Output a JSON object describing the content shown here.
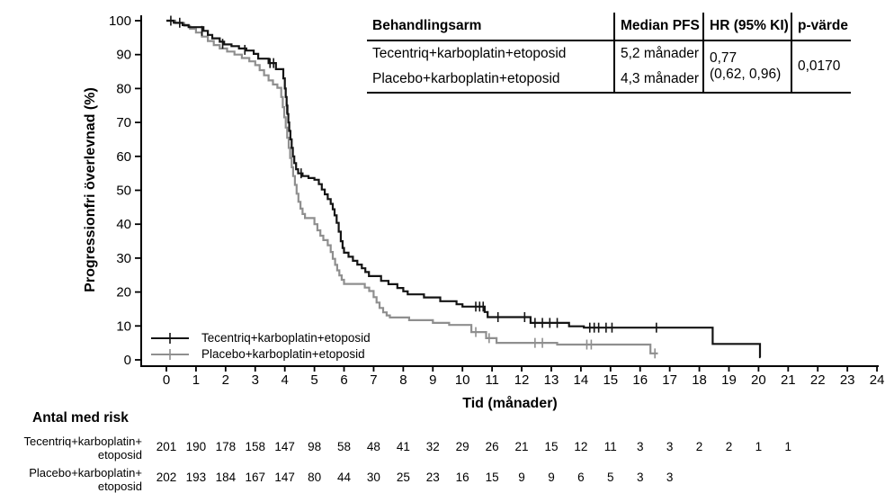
{
  "stats_table": {
    "headers": [
      "Behandlingsarm",
      "Median PFS",
      "HR (95% KI)",
      "p-värde"
    ],
    "rows": [
      {
        "arm": "Tecentriq+karboplatin+etoposid",
        "median": "5,2 månader"
      },
      {
        "arm": "Placebo+karboplatin+etoposid",
        "median": "4,3 månader"
      }
    ],
    "hr_value": "0,77",
    "hr_ci": "(0,62, 0,96)",
    "p_value": "0,0170"
  },
  "risk_table": {
    "title": "Antal med risk",
    "rows": [
      {
        "label": "Tecentriq+karboplatin+\netoposid",
        "values": [
          201,
          190,
          178,
          158,
          147,
          98,
          58,
          48,
          41,
          32,
          29,
          26,
          21,
          15,
          12,
          11,
          3,
          3,
          2,
          2,
          1,
          1
        ]
      },
      {
        "label": "Placebo+karboplatin+\netoposid",
        "values": [
          202,
          193,
          184,
          167,
          147,
          80,
          44,
          30,
          25,
          23,
          16,
          15,
          9,
          9,
          6,
          5,
          3,
          3
        ]
      }
    ]
  },
  "chart_data": {
    "type": "line",
    "subtype": "kaplan-meier-step",
    "title": "",
    "xlabel": "Tid (månader)",
    "ylabel": "Progressionfri överlevnad (%)",
    "xlim": [
      0,
      24
    ],
    "ylim": [
      0,
      100
    ],
    "xticks": [
      0,
      1,
      2,
      3,
      4,
      5,
      6,
      7,
      8,
      9,
      10,
      11,
      12,
      13,
      14,
      15,
      16,
      17,
      18,
      19,
      20,
      21,
      22,
      23,
      24
    ],
    "yticks": [
      0,
      10,
      20,
      30,
      40,
      50,
      60,
      70,
      80,
      90,
      100
    ],
    "grid": false,
    "legend_position": "lower-left-inside",
    "series": [
      {
        "name": "Tecentriq+karboplatin+etoposid",
        "color": "#141414",
        "median_pfs_months": 5.2,
        "end": 20.07,
        "steps": [
          [
            0,
            100
          ],
          [
            0.25,
            99.4
          ],
          [
            0.55,
            98.7
          ],
          [
            0.75,
            98.1
          ],
          [
            1.25,
            97
          ],
          [
            1.4,
            95.8
          ],
          [
            1.55,
            94.8
          ],
          [
            1.8,
            93.8
          ],
          [
            1.95,
            93
          ],
          [
            2.2,
            92.5
          ],
          [
            2.45,
            91.8
          ],
          [
            2.7,
            91.2
          ],
          [
            2.95,
            90.2
          ],
          [
            3.1,
            88.8
          ],
          [
            3.45,
            87.5
          ],
          [
            3.7,
            85.7
          ],
          [
            3.95,
            83
          ],
          [
            4.0,
            80
          ],
          [
            4.03,
            77.5
          ],
          [
            4.06,
            75
          ],
          [
            4.09,
            72.5
          ],
          [
            4.12,
            70
          ],
          [
            4.15,
            67.5
          ],
          [
            4.19,
            65
          ],
          [
            4.23,
            62.5
          ],
          [
            4.27,
            60
          ],
          [
            4.32,
            58
          ],
          [
            4.38,
            56.2
          ],
          [
            4.45,
            55
          ],
          [
            4.6,
            54.2
          ],
          [
            4.8,
            53.6
          ],
          [
            5.0,
            53.1
          ],
          [
            5.15,
            51.8
          ],
          [
            5.25,
            50.2
          ],
          [
            5.35,
            48.8
          ],
          [
            5.45,
            47.4
          ],
          [
            5.55,
            46
          ],
          [
            5.62,
            44.4
          ],
          [
            5.68,
            42.6
          ],
          [
            5.75,
            40.4
          ],
          [
            5.82,
            37.8
          ],
          [
            5.89,
            35
          ],
          [
            5.95,
            33
          ],
          [
            6.0,
            31.6
          ],
          [
            6.15,
            30.4
          ],
          [
            6.3,
            29.2
          ],
          [
            6.45,
            28.1
          ],
          [
            6.6,
            27
          ],
          [
            6.72,
            25.9
          ],
          [
            6.84,
            24.7
          ],
          [
            7.25,
            23.3
          ],
          [
            7.5,
            22.3
          ],
          [
            7.8,
            21.2
          ],
          [
            8.0,
            20.2
          ],
          [
            8.15,
            19.3
          ],
          [
            8.7,
            18.4
          ],
          [
            9.25,
            17.3
          ],
          [
            9.8,
            16.4
          ],
          [
            10.0,
            15.7
          ],
          [
            10.75,
            14.1
          ],
          [
            10.85,
            12.6
          ],
          [
            12.3,
            10.9
          ],
          [
            13.6,
            9.9
          ],
          [
            14.1,
            9.5
          ],
          [
            18.45,
            4.7
          ],
          [
            20.05,
            0.8
          ]
        ],
        "censors": [
          [
            0.15,
            100
          ],
          [
            0.45,
            99.4
          ],
          [
            1.2,
            97
          ],
          [
            1.9,
            93.2
          ],
          [
            2.65,
            91.4
          ],
          [
            3.5,
            87.5
          ],
          [
            3.62,
            87.5
          ],
          [
            4.07,
            74
          ],
          [
            4.55,
            55
          ],
          [
            10.45,
            15.7
          ],
          [
            10.58,
            15.7
          ],
          [
            10.7,
            15.7
          ],
          [
            11.2,
            12.6
          ],
          [
            12.1,
            12.6
          ],
          [
            12.45,
            10.9
          ],
          [
            12.7,
            10.9
          ],
          [
            12.95,
            10.9
          ],
          [
            13.2,
            10.9
          ],
          [
            14.3,
            9.5
          ],
          [
            14.45,
            9.5
          ],
          [
            14.6,
            9.5
          ],
          [
            14.85,
            9.5
          ],
          [
            15.05,
            9.5
          ],
          [
            16.55,
            9.5
          ]
        ]
      },
      {
        "name": "Placebo+karboplatin+etoposid",
        "color": "#8f8f8f",
        "median_pfs_months": 4.3,
        "end": 16.6,
        "steps": [
          [
            0,
            100
          ],
          [
            0.3,
            99.3
          ],
          [
            0.6,
            98.5
          ],
          [
            0.8,
            97.6
          ],
          [
            1.0,
            96.5
          ],
          [
            1.2,
            95.3
          ],
          [
            1.4,
            94
          ],
          [
            1.6,
            92.8
          ],
          [
            1.8,
            91.8
          ],
          [
            2.05,
            90.9
          ],
          [
            2.3,
            90
          ],
          [
            2.55,
            89
          ],
          [
            2.8,
            88
          ],
          [
            3.0,
            86.9
          ],
          [
            3.15,
            85.4
          ],
          [
            3.3,
            83.9
          ],
          [
            3.45,
            82.4
          ],
          [
            3.6,
            81.2
          ],
          [
            3.75,
            80.2
          ],
          [
            3.88,
            77.5
          ],
          [
            3.93,
            74.5
          ],
          [
            3.98,
            71.5
          ],
          [
            4.03,
            68.5
          ],
          [
            4.08,
            65.5
          ],
          [
            4.13,
            62.5
          ],
          [
            4.18,
            59.5
          ],
          [
            4.23,
            56.8
          ],
          [
            4.28,
            54.2
          ],
          [
            4.34,
            51.6
          ],
          [
            4.4,
            49
          ],
          [
            4.46,
            46.6
          ],
          [
            4.53,
            44.6
          ],
          [
            4.6,
            43
          ],
          [
            4.68,
            41.8
          ],
          [
            5.0,
            40
          ],
          [
            5.1,
            38.2
          ],
          [
            5.2,
            36.6
          ],
          [
            5.3,
            35.3
          ],
          [
            5.45,
            33.8
          ],
          [
            5.55,
            31.8
          ],
          [
            5.62,
            29.8
          ],
          [
            5.7,
            28
          ],
          [
            5.77,
            26.4
          ],
          [
            5.84,
            24.9
          ],
          [
            5.92,
            23.6
          ],
          [
            6.0,
            22.4
          ],
          [
            6.7,
            21.3
          ],
          [
            6.85,
            20.3
          ],
          [
            7.0,
            18.5
          ],
          [
            7.1,
            16.9
          ],
          [
            7.2,
            15.3
          ],
          [
            7.32,
            14
          ],
          [
            7.44,
            13.1
          ],
          [
            7.55,
            12.5
          ],
          [
            8.2,
            11.7
          ],
          [
            9.0,
            10.9
          ],
          [
            9.55,
            10.3
          ],
          [
            10.3,
            8.2
          ],
          [
            10.8,
            6.4
          ],
          [
            11.15,
            5.0
          ],
          [
            13.2,
            4.5
          ],
          [
            16.35,
            1.9
          ]
        ],
        "censors": [
          [
            10.45,
            8.2
          ],
          [
            10.9,
            6.4
          ],
          [
            12.45,
            5.0
          ],
          [
            12.7,
            5.0
          ],
          [
            14.2,
            4.5
          ],
          [
            14.35,
            4.5
          ],
          [
            16.5,
            1.9
          ]
        ]
      }
    ]
  }
}
